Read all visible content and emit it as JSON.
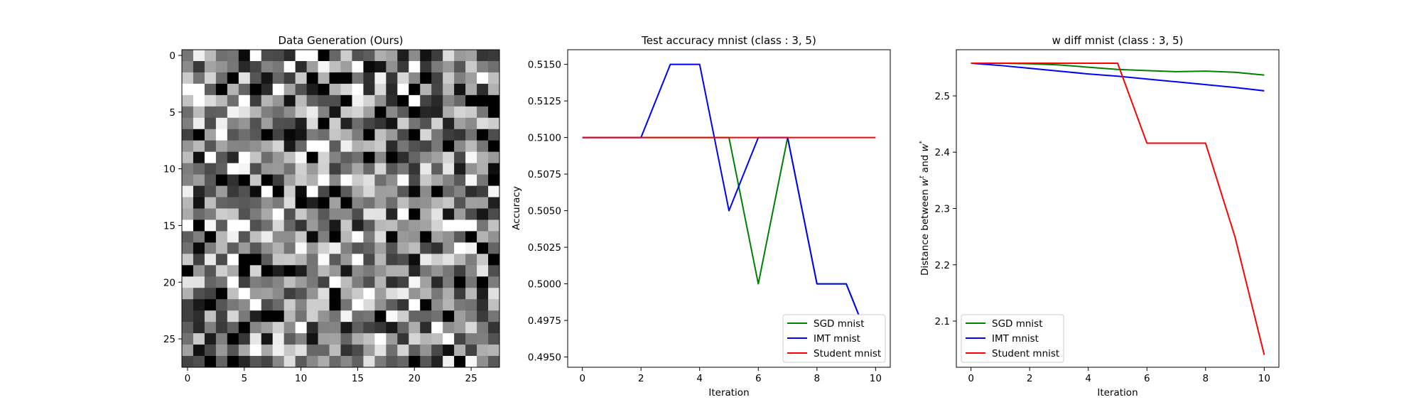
{
  "chart_data": [
    {
      "type": "heatmap",
      "title": "Data Generation (Ours)",
      "colormap": "gray",
      "rows": 28,
      "cols": 28,
      "xticks": [
        0,
        5,
        10,
        15,
        20,
        25
      ],
      "yticks": [
        0,
        5,
        10,
        15,
        20,
        25
      ],
      "xlim": [
        -0.5,
        27.5
      ],
      "ylim": [
        27.5,
        -0.5
      ],
      "value_range": [
        0,
        1
      ],
      "values_note": "random noise pixels",
      "seed": 7
    },
    {
      "type": "line",
      "title": "Test accuracy mnist (class : 3, 5)",
      "xlabel": "Iteration",
      "ylabel": "Accuracy",
      "xlim": [
        -0.5,
        10.5
      ],
      "ylim": [
        0.4943,
        0.516
      ],
      "xticks": [
        0,
        2,
        4,
        6,
        8,
        10
      ],
      "yticks": [
        0.495,
        0.4975,
        0.5,
        0.5025,
        0.505,
        0.5075,
        0.51,
        0.5125,
        0.515
      ],
      "ytick_labels": [
        "0.4950",
        "0.4975",
        "0.5000",
        "0.5025",
        "0.5050",
        "0.5075",
        "0.5100",
        "0.5125",
        "0.5150"
      ],
      "legend": "lower-right",
      "x": [
        0,
        1,
        2,
        3,
        4,
        5,
        6,
        7,
        8,
        9,
        10
      ],
      "series": [
        {
          "name": "SGD mnist",
          "color": "#008000",
          "values": [
            0.51,
            0.51,
            0.51,
            0.51,
            0.51,
            0.51,
            0.5,
            0.51,
            0.5,
            0.5,
            0.495
          ]
        },
        {
          "name": "IMT mnist",
          "color": "#0000ff",
          "values": [
            0.51,
            0.51,
            0.51,
            0.515,
            0.515,
            0.505,
            0.51,
            0.51,
            0.5,
            0.5,
            0.495
          ]
        },
        {
          "name": "Student mnist",
          "color": "#ff0000",
          "values": [
            0.51,
            0.51,
            0.51,
            0.51,
            0.51,
            0.51,
            0.51,
            0.51,
            0.51,
            0.51,
            0.51
          ]
        }
      ]
    },
    {
      "type": "line",
      "title": "w diff mnist (class : 3, 5)",
      "xlabel": "Iteration",
      "ylabel": "Distance between w^t and w^*",
      "ylabel_parts": [
        "Distance between ",
        "w",
        "t",
        " and ",
        "w",
        "*"
      ],
      "xlim": [
        -0.5,
        10.5
      ],
      "ylim": [
        2.018,
        2.582
      ],
      "xticks": [
        0,
        2,
        4,
        6,
        8,
        10
      ],
      "yticks": [
        2.1,
        2.2,
        2.3,
        2.4,
        2.5
      ],
      "ytick_labels": [
        "2.1",
        "2.2",
        "2.3",
        "2.4",
        "2.5"
      ],
      "legend": "lower-left",
      "x": [
        0,
        1,
        2,
        3,
        4,
        5,
        6,
        7,
        8,
        9,
        10
      ],
      "series": [
        {
          "name": "SGD mnist",
          "color": "#008000",
          "values": [
            2.558,
            2.558,
            2.557,
            2.555,
            2.551,
            2.547,
            2.545,
            2.543,
            2.544,
            2.542,
            2.537
          ]
        },
        {
          "name": "IMT mnist",
          "color": "#0000ff",
          "values": [
            2.558,
            2.554,
            2.549,
            2.544,
            2.539,
            2.535,
            2.53,
            2.525,
            2.52,
            2.515,
            2.509
          ]
        },
        {
          "name": "Student mnist",
          "color": "#ff0000",
          "values": [
            2.558,
            2.558,
            2.558,
            2.558,
            2.558,
            2.558,
            2.416,
            2.416,
            2.416,
            2.25,
            2.04
          ]
        }
      ]
    }
  ]
}
